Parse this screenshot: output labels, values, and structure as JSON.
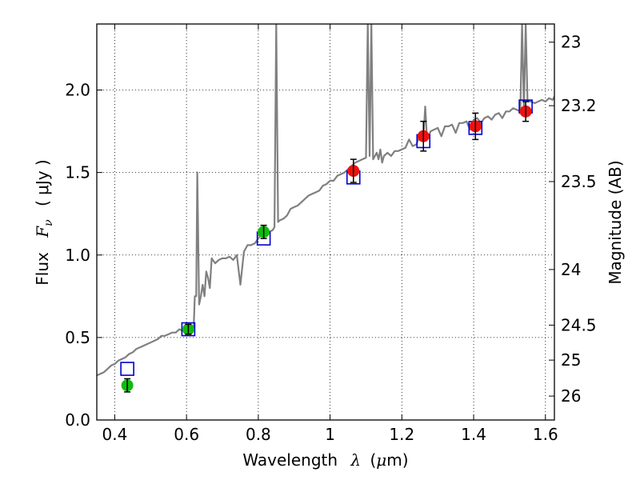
{
  "chart_data": {
    "type": "scatter",
    "xlabel_prefix": "Wavelength",
    "xlabel_symbol": "λ",
    "xlabel_unit_open": "(",
    "xlabel_unit_mu": "μ",
    "xlabel_unit_rest": "m)",
    "ylabel_prefix": "Flux",
    "ylabel_symbol": "F",
    "ylabel_subscript": "ν",
    "ylabel_unit": "( μJy )",
    "ylabel_right": "Magnitude (AB)",
    "xlim": [
      0.35,
      1.625
    ],
    "ylim": [
      0.0,
      2.4
    ],
    "x_ticks": [
      0.4,
      0.6,
      0.8,
      1.0,
      1.2,
      1.4,
      1.6
    ],
    "x_tick_labels": [
      "0.4",
      "0.6",
      "0.8",
      "1",
      "1.2",
      "1.4",
      "1.6"
    ],
    "y_ticks": [
      0.0,
      0.5,
      1.0,
      1.5,
      2.0
    ],
    "y_tick_labels": [
      "0.0",
      "0.5",
      "1.0",
      "1.5",
      "2.0"
    ],
    "right_ticks": [
      {
        "label": "23",
        "flux": 2.29
      },
      {
        "label": "23.2",
        "flux": 1.905
      },
      {
        "label": "23.5",
        "flux": 1.445
      },
      {
        "label": "24",
        "flux": 0.912
      },
      {
        "label": "24.5",
        "flux": 0.575
      },
      {
        "label": "25",
        "flux": 0.363
      },
      {
        "label": "26",
        "flux": 0.145
      }
    ],
    "grid": true,
    "colors": {
      "model": "#808080",
      "model_photometry": "#0000cc",
      "observed_blue": "#11bb11",
      "observed_red": "#ee1111",
      "errorbar": "#000000"
    },
    "series": [
      {
        "name": "model_spectrum",
        "x": [
          0.35,
          0.36,
          0.37,
          0.38,
          0.39,
          0.4,
          0.41,
          0.42,
          0.43,
          0.44,
          0.45,
          0.46,
          0.47,
          0.48,
          0.49,
          0.5,
          0.51,
          0.52,
          0.53,
          0.54,
          0.55,
          0.56,
          0.57,
          0.58,
          0.59,
          0.6,
          0.61,
          0.62,
          0.623,
          0.627,
          0.63,
          0.635,
          0.64,
          0.645,
          0.65,
          0.655,
          0.66,
          0.665,
          0.67,
          0.68,
          0.69,
          0.7,
          0.71,
          0.72,
          0.73,
          0.74,
          0.75,
          0.76,
          0.77,
          0.78,
          0.79,
          0.8,
          0.81,
          0.82,
          0.83,
          0.84,
          0.845,
          0.85,
          0.855,
          0.86,
          0.87,
          0.88,
          0.89,
          0.9,
          0.91,
          0.92,
          0.93,
          0.94,
          0.95,
          0.96,
          0.97,
          0.98,
          0.99,
          1.0,
          1.01,
          1.02,
          1.03,
          1.04,
          1.05,
          1.06,
          1.07,
          1.08,
          1.09,
          1.1,
          1.105,
          1.11,
          1.115,
          1.12,
          1.13,
          1.135,
          1.14,
          1.145,
          1.15,
          1.16,
          1.17,
          1.18,
          1.19,
          1.2,
          1.21,
          1.22,
          1.23,
          1.24,
          1.25,
          1.26,
          1.265,
          1.27,
          1.275,
          1.28,
          1.29,
          1.3,
          1.31,
          1.32,
          1.33,
          1.34,
          1.35,
          1.36,
          1.37,
          1.38,
          1.39,
          1.4,
          1.41,
          1.42,
          1.43,
          1.44,
          1.45,
          1.46,
          1.47,
          1.48,
          1.49,
          1.5,
          1.51,
          1.52,
          1.53,
          1.535,
          1.54,
          1.545,
          1.55,
          1.56,
          1.57,
          1.58,
          1.59,
          1.6,
          1.61,
          1.62,
          1.625
        ],
        "y": [
          0.27,
          0.28,
          0.29,
          0.31,
          0.33,
          0.34,
          0.36,
          0.37,
          0.38,
          0.4,
          0.41,
          0.43,
          0.44,
          0.45,
          0.46,
          0.47,
          0.48,
          0.49,
          0.51,
          0.51,
          0.52,
          0.53,
          0.53,
          0.55,
          0.54,
          0.55,
          0.55,
          0.56,
          0.75,
          0.75,
          1.5,
          0.7,
          0.75,
          0.82,
          0.75,
          0.9,
          0.86,
          0.8,
          0.98,
          0.95,
          0.97,
          0.98,
          0.98,
          0.99,
          0.97,
          1.0,
          0.82,
          1.02,
          1.06,
          1.06,
          1.07,
          1.1,
          1.13,
          1.14,
          1.14,
          1.15,
          1.17,
          2.4,
          1.2,
          1.21,
          1.22,
          1.24,
          1.28,
          1.29,
          1.3,
          1.32,
          1.34,
          1.36,
          1.37,
          1.38,
          1.39,
          1.42,
          1.43,
          1.45,
          1.45,
          1.48,
          1.49,
          1.5,
          1.52,
          1.54,
          1.56,
          1.57,
          1.58,
          1.59,
          2.4,
          1.6,
          2.4,
          1.58,
          1.62,
          1.58,
          1.64,
          1.56,
          1.6,
          1.62,
          1.6,
          1.63,
          1.63,
          1.64,
          1.65,
          1.7,
          1.66,
          1.67,
          1.72,
          1.71,
          1.9,
          1.71,
          1.72,
          1.75,
          1.76,
          1.77,
          1.72,
          1.78,
          1.78,
          1.79,
          1.74,
          1.8,
          1.8,
          1.81,
          1.76,
          1.82,
          1.83,
          1.8,
          1.83,
          1.84,
          1.82,
          1.85,
          1.86,
          1.83,
          1.87,
          1.87,
          1.89,
          1.88,
          1.87,
          2.4,
          1.88,
          2.4,
          1.93,
          1.93,
          1.92,
          1.93,
          1.94,
          1.93,
          1.95,
          1.94,
          1.96
        ]
      },
      {
        "name": "model_photometry",
        "marker": "open-square",
        "x": [
          0.435,
          0.605,
          0.815,
          1.065,
          1.26,
          1.405,
          1.545
        ],
        "y": [
          0.31,
          0.55,
          1.1,
          1.47,
          1.69,
          1.77,
          1.9
        ]
      },
      {
        "name": "observed_photometry",
        "marker": "filled-circle",
        "x": [
          0.435,
          0.605,
          0.815,
          1.065,
          1.26,
          1.405,
          1.545
        ],
        "y": [
          0.21,
          0.55,
          1.14,
          1.51,
          1.72,
          1.78,
          1.87
        ],
        "err": [
          0.04,
          0.03,
          0.04,
          0.07,
          0.09,
          0.08,
          0.06
        ],
        "color_key": [
          "observed_blue",
          "observed_blue",
          "observed_blue",
          "observed_red",
          "observed_red",
          "observed_red",
          "observed_red"
        ]
      }
    ]
  }
}
